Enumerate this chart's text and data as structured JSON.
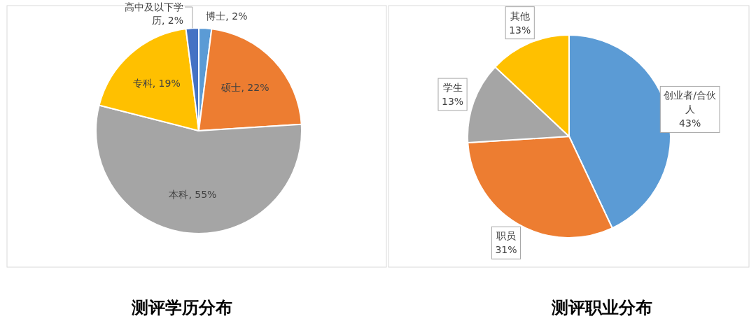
{
  "chart_data": [
    {
      "type": "pie",
      "title": "测评学历分布",
      "categories": [
        "博士",
        "硕士",
        "本科",
        "专科",
        "高中及以下学历"
      ],
      "values": [
        2,
        22,
        55,
        19,
        2
      ],
      "value_labels": [
        "2%",
        "22%",
        "55%",
        "19%",
        "2%"
      ],
      "colors": [
        "#5b9bd5",
        "#ed7d31",
        "#a5a5a5",
        "#ffc000",
        "#4472c4"
      ]
    },
    {
      "type": "pie",
      "title": "测评职业分布",
      "categories": [
        "创业者/合伙人",
        "职员",
        "学生",
        "其他"
      ],
      "values": [
        43,
        31,
        13,
        13
      ],
      "value_labels": [
        "43%",
        "31%",
        "13%",
        "13%"
      ],
      "colors": [
        "#5b9bd5",
        "#ed7d31",
        "#a5a5a5",
        "#ffc000"
      ]
    }
  ]
}
